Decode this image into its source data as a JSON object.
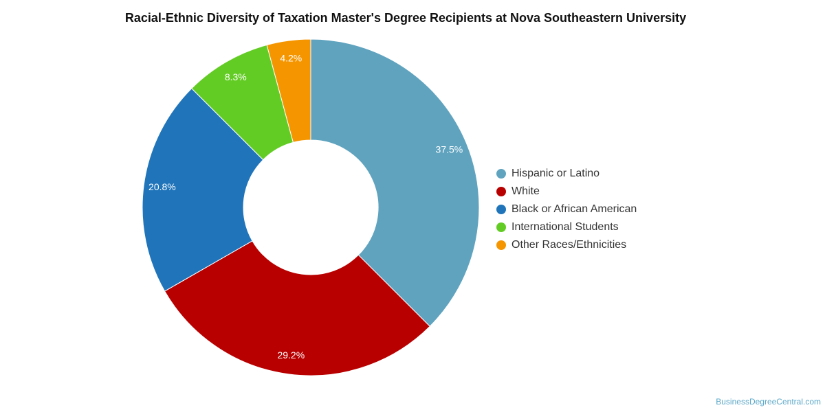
{
  "chart_data": {
    "type": "pie",
    "variant": "donut",
    "title": "Racial-Ethnic Diversity of Taxation Master's Degree Recipients at Nova Southeastern University",
    "categories": [
      "Hispanic or Latino",
      "White",
      "Black or African American",
      "International Students",
      "Other Races/Ethnicities"
    ],
    "values": [
      37.5,
      29.2,
      20.8,
      8.3,
      4.2
    ],
    "labels": [
      "37.5%",
      "29.2%",
      "20.8%",
      "8.3%",
      "4.2%"
    ],
    "colors": [
      "#5fa3bf",
      "#b80000",
      "#1f74ba",
      "#63cc24",
      "#f59500"
    ],
    "legend_position": "right"
  },
  "watermark": "BusinessDegreeCentral.com"
}
